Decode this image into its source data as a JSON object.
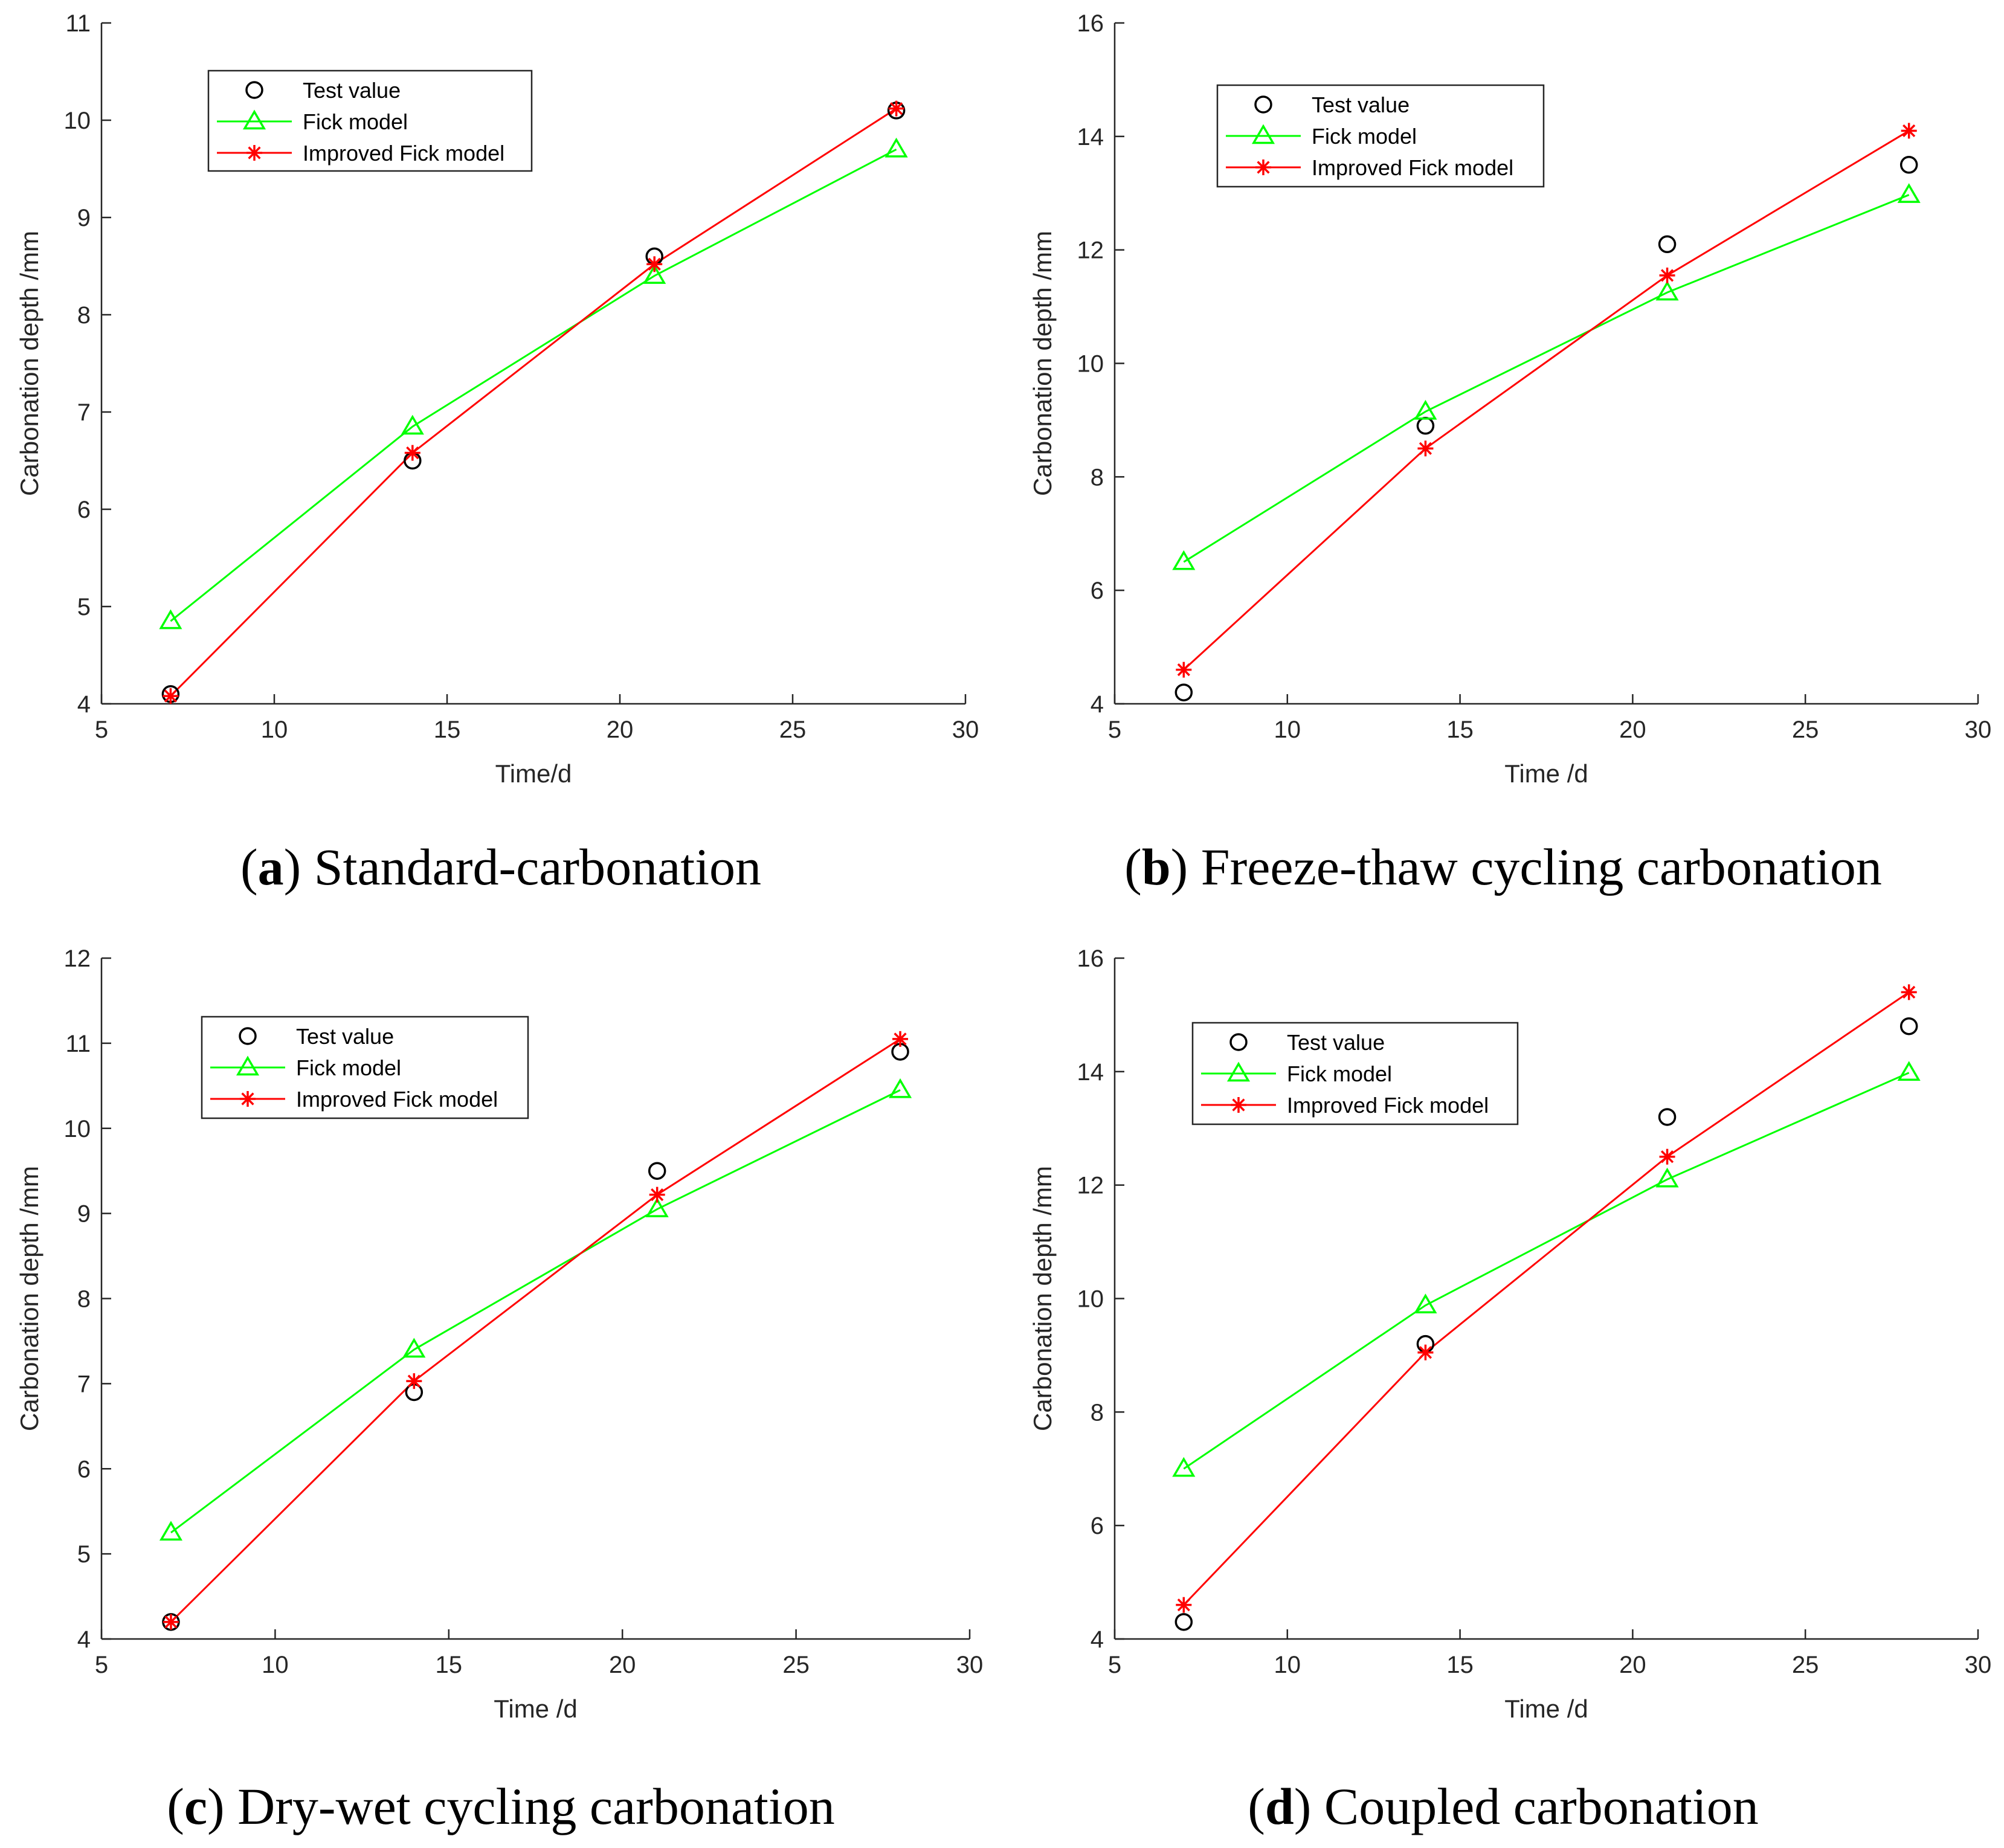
{
  "colors": {
    "test": "#000000",
    "fick": "#00ff00",
    "improved": "#ff0000",
    "axis": "#262626"
  },
  "legend_labels": [
    "Test value",
    "Fick model",
    "Improved Fick model"
  ],
  "chart_data": [
    {
      "type": "line",
      "panel_label": "a",
      "caption": "Standard-carbonation",
      "xlabel": "Time/d",
      "ylabel": "Carbonation depth /mm",
      "xlim": [
        5,
        30
      ],
      "ylim": [
        4,
        11
      ],
      "xticks": [
        5,
        10,
        15,
        20,
        25,
        30
      ],
      "yticks": [
        4,
        5,
        6,
        7,
        8,
        9,
        10,
        11
      ],
      "x": [
        7,
        14,
        21,
        28
      ],
      "series": [
        {
          "name": "Test value",
          "values": [
            4.1,
            6.5,
            8.6,
            10.1
          ]
        },
        {
          "name": "Fick model",
          "values": [
            4.85,
            6.85,
            8.4,
            9.7
          ]
        },
        {
          "name": "Improved Fick model",
          "values": [
            4.08,
            6.58,
            8.52,
            10.12
          ]
        }
      ]
    },
    {
      "type": "line",
      "panel_label": "b",
      "caption": "Freeze-thaw cycling carbonation",
      "xlabel": "Time /d",
      "ylabel": "Carbonation depth /mm",
      "xlim": [
        5,
        30
      ],
      "ylim": [
        4,
        16
      ],
      "xticks": [
        5,
        10,
        15,
        20,
        25,
        30
      ],
      "yticks": [
        4,
        6,
        8,
        10,
        12,
        14,
        16
      ],
      "x": [
        7,
        14,
        21,
        28
      ],
      "series": [
        {
          "name": "Test value",
          "values": [
            4.2,
            8.9,
            12.1,
            13.5
          ]
        },
        {
          "name": "Fick model",
          "values": [
            6.5,
            9.15,
            11.25,
            12.97
          ]
        },
        {
          "name": "Improved Fick model",
          "values": [
            4.6,
            8.5,
            11.55,
            14.1
          ]
        }
      ]
    },
    {
      "type": "line",
      "panel_label": "c",
      "caption": "Dry-wet cycling carbonation",
      "xlabel": "Time /d",
      "ylabel": "Carbonation depth /mm",
      "xlim": [
        5,
        30
      ],
      "ylim": [
        4,
        12
      ],
      "xticks": [
        5,
        10,
        15,
        20,
        25,
        30
      ],
      "yticks": [
        4,
        5,
        6,
        7,
        8,
        9,
        10,
        11,
        12
      ],
      "x": [
        7,
        14,
        21,
        28
      ],
      "series": [
        {
          "name": "Test value",
          "values": [
            4.2,
            6.9,
            9.5,
            10.9
          ]
        },
        {
          "name": "Fick model",
          "values": [
            5.25,
            7.4,
            9.05,
            10.45
          ]
        },
        {
          "name": "Improved Fick model",
          "values": [
            4.2,
            7.03,
            9.22,
            11.05
          ]
        }
      ]
    },
    {
      "type": "line",
      "panel_label": "d",
      "caption": "Coupled carbonation",
      "xlabel": "Time /d",
      "ylabel": "Carbonation depth /mm",
      "xlim": [
        5,
        30
      ],
      "ylim": [
        4,
        16
      ],
      "xticks": [
        5,
        10,
        15,
        20,
        25,
        30
      ],
      "yticks": [
        4,
        6,
        8,
        10,
        12,
        14,
        16
      ],
      "x": [
        7,
        14,
        21,
        28
      ],
      "series": [
        {
          "name": "Test value",
          "values": [
            4.3,
            9.2,
            13.2,
            14.8
          ]
        },
        {
          "name": "Fick model",
          "values": [
            7.0,
            9.88,
            12.1,
            13.98
          ]
        },
        {
          "name": "Improved Fick model",
          "values": [
            4.6,
            9.05,
            12.5,
            15.4
          ]
        }
      ]
    }
  ]
}
